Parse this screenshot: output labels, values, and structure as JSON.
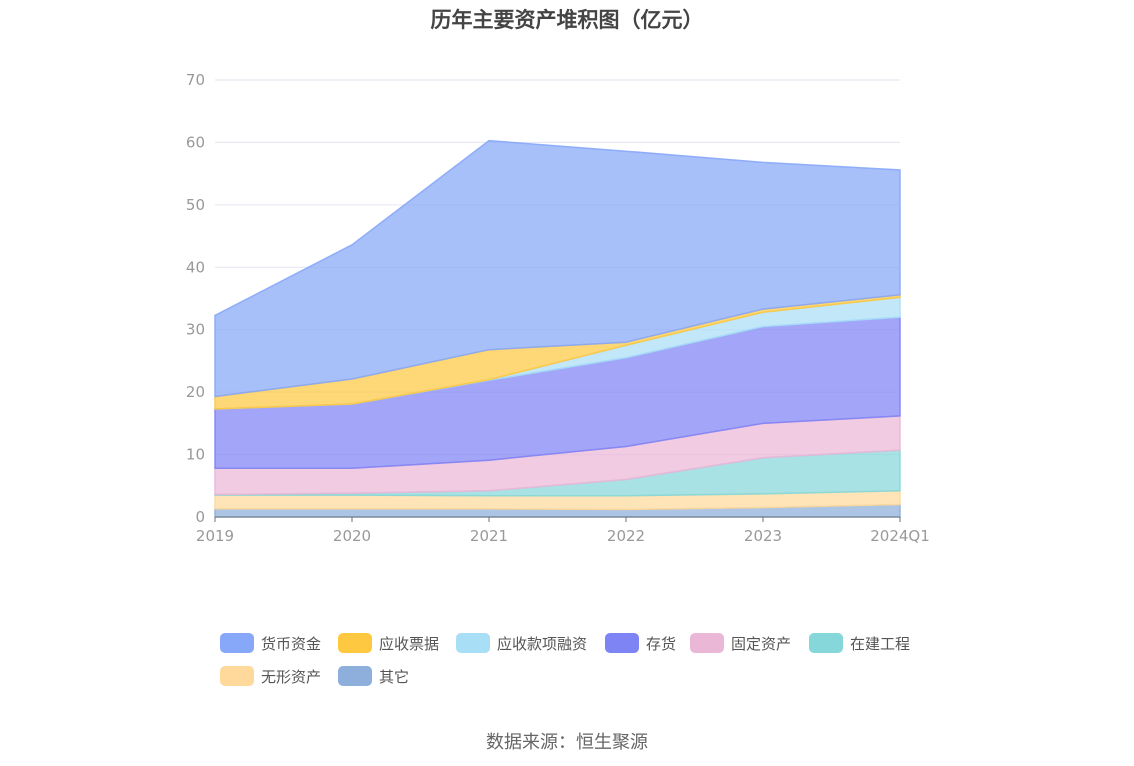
{
  "chart_data": {
    "type": "area",
    "stacked": true,
    "title": "历年主要资产堆积图（亿元）",
    "categories": [
      "2019",
      "2020",
      "2021",
      "2022",
      "2023",
      "2024Q1"
    ],
    "ylim": [
      0,
      70
    ],
    "yticks": [
      0,
      10,
      20,
      30,
      40,
      50,
      60,
      70
    ],
    "grid": true,
    "legend_position": "bottom",
    "series": [
      {
        "name": "其它",
        "color": "#8eaedb",
        "values": [
          1.3,
          1.3,
          1.3,
          1.2,
          1.5,
          2.0
        ]
      },
      {
        "name": "无形资产",
        "color": "#fed99b",
        "values": [
          2.2,
          2.2,
          2.1,
          2.2,
          2.2,
          2.2
        ]
      },
      {
        "name": "在建工程",
        "color": "#86d7d9",
        "values": [
          0.1,
          0.3,
          0.8,
          2.6,
          5.8,
          6.5
        ]
      },
      {
        "name": "固定资产",
        "color": "#eab7d7",
        "values": [
          4.2,
          4.0,
          4.9,
          5.3,
          5.5,
          5.5
        ]
      },
      {
        "name": "存货",
        "color": "#7f84f5",
        "values": [
          9.5,
          10.3,
          12.8,
          14.2,
          15.5,
          15.8
        ]
      },
      {
        "name": "应收款项融资",
        "color": "#a9def7",
        "values": [
          0.0,
          0.0,
          0.1,
          2.0,
          2.3,
          3.2
        ]
      },
      {
        "name": "应收票据",
        "color": "#fec841",
        "values": [
          2.0,
          4.0,
          4.8,
          0.5,
          0.5,
          0.4
        ]
      },
      {
        "name": "货币资金",
        "color": "#87a7f8",
        "values": [
          13.0,
          21.5,
          33.5,
          30.6,
          23.5,
          20.0
        ]
      }
    ]
  },
  "legend_order": [
    "货币资金",
    "应收票据",
    "应收款项融资",
    "存货",
    "固定资产",
    "在建工程",
    "无形资产",
    "其它"
  ],
  "source": "数据来源：恒生聚源"
}
